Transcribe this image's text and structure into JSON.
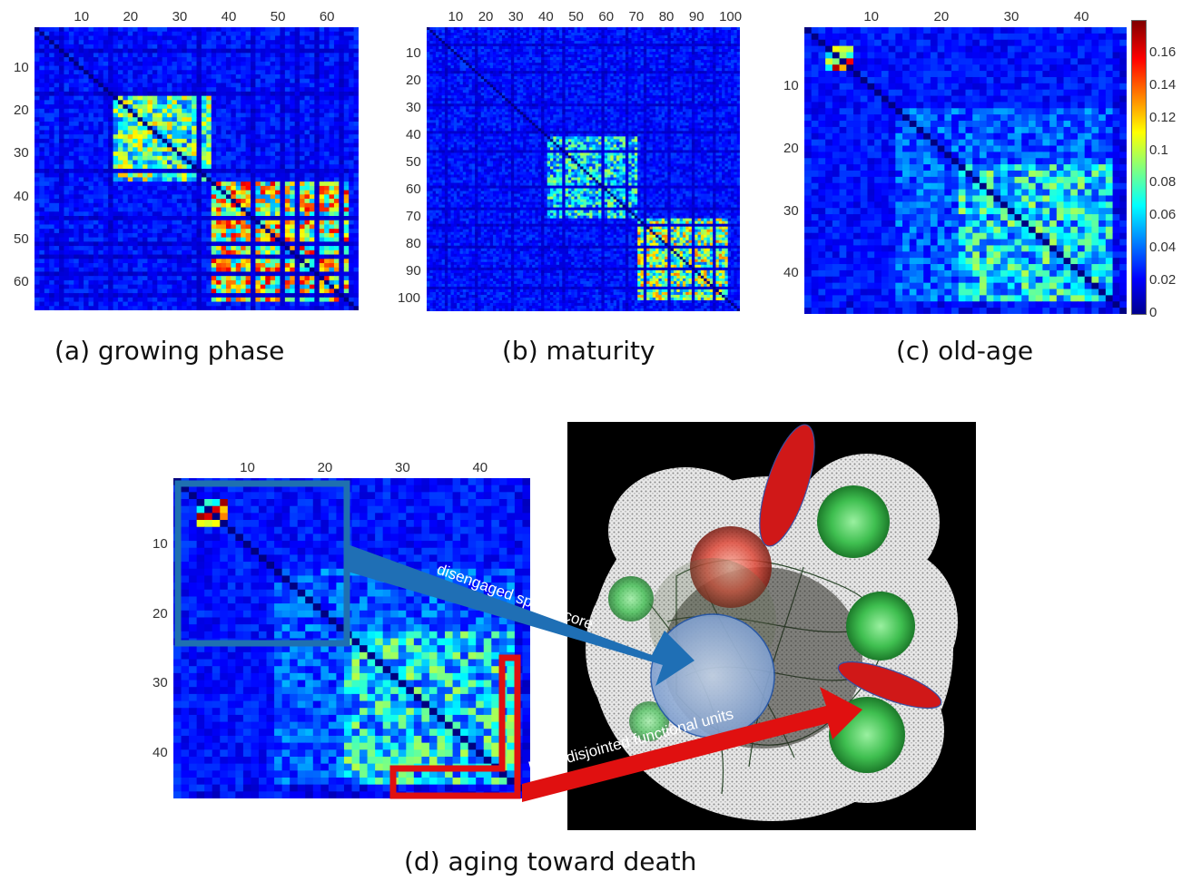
{
  "chart_data": [
    {
      "type": "heatmap",
      "panel": "a",
      "caption": "(a) growing phase",
      "n": 66,
      "xticks": [
        10,
        20,
        30,
        40,
        50,
        60
      ],
      "yticks": [
        10,
        20,
        30,
        40,
        50,
        60
      ],
      "colormap": "jet",
      "value_range": [
        0,
        0.18
      ],
      "cross_lines": [
        5,
        15,
        33,
        44,
        50,
        53,
        57,
        62
      ],
      "dense_blocks": [
        [
          16,
          36,
          0.1
        ],
        [
          36,
          64,
          0.13
        ]
      ]
    },
    {
      "type": "heatmap",
      "panel": "b",
      "caption": "(b) maturity",
      "n": 104,
      "xticks": [
        10,
        20,
        30,
        40,
        50,
        60,
        70,
        80,
        90,
        100
      ],
      "yticks": [
        10,
        20,
        30,
        40,
        50,
        60,
        70,
        80,
        90,
        100
      ],
      "colormap": "jet",
      "value_range": [
        0,
        0.18
      ],
      "cross_lines": [
        6,
        16,
        28,
        38,
        45,
        58,
        66,
        72,
        80,
        88,
        95
      ],
      "dense_blocks": [
        [
          40,
          70,
          0.08
        ],
        [
          70,
          100,
          0.11
        ]
      ]
    },
    {
      "type": "heatmap",
      "panel": "c",
      "caption": "(c) old-age",
      "n": 46,
      "xticks": [
        10,
        20,
        30,
        40
      ],
      "yticks": [
        10,
        20,
        30,
        40
      ],
      "colormap": "jet",
      "value_range": [
        0,
        0.18
      ],
      "colorbar": {
        "ticks": [
          "0.16",
          "0.14",
          "0.12",
          "0.1",
          "0.08",
          "0.06",
          "0.04",
          "0.02",
          "0"
        ],
        "values": [
          0.16,
          0.14,
          0.12,
          0.1,
          0.08,
          0.06,
          0.04,
          0.02,
          0
        ]
      },
      "cross_lines": [],
      "dense_blocks": [
        [
          3,
          7,
          0.14
        ],
        [
          22,
          45,
          0.08
        ]
      ]
    },
    {
      "type": "heatmap",
      "panel": "d",
      "caption": "(d) aging toward death",
      "n": 46,
      "xticks": [
        10,
        20,
        30,
        40
      ],
      "yticks": [
        10,
        20,
        30,
        40
      ],
      "colormap": "jet",
      "value_range": [
        0,
        0.18
      ],
      "cross_lines": [],
      "dense_blocks": [
        [
          3,
          7,
          0.14
        ],
        [
          22,
          45,
          0.08
        ]
      ],
      "annotations": [
        {
          "text": "disengaged sparse core",
          "color": "#1f6fb5"
        },
        {
          "text": "large disjointed functional units",
          "color": "#e01010"
        }
      ]
    }
  ]
}
